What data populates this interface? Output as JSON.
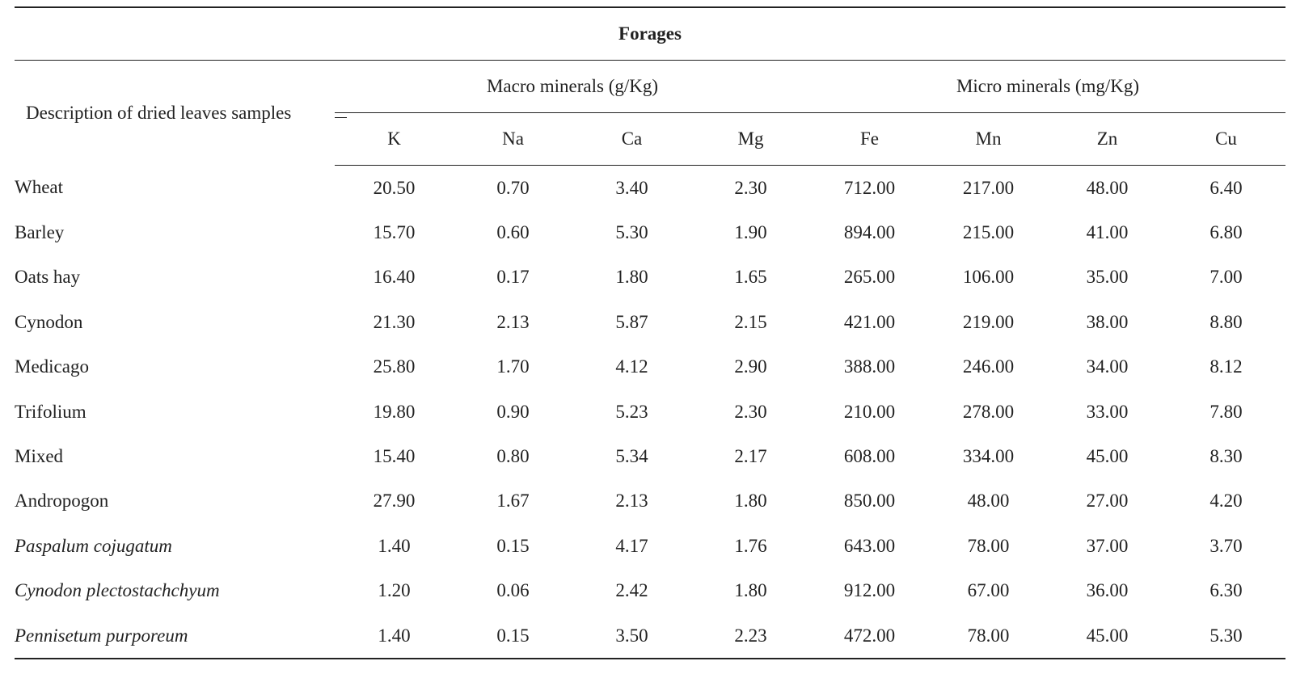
{
  "table": {
    "title": "Forages",
    "desc_header": "Description of dried leaves samples",
    "groups": [
      {
        "label": "Macro minerals (g/Kg)",
        "span": 4
      },
      {
        "label": "Micro minerals (mg/Kg)",
        "span": 4
      }
    ],
    "columns": [
      "K",
      "Na",
      "Ca",
      "Mg",
      "Fe",
      "Mn",
      "Zn",
      "Cu"
    ],
    "rows": [
      {
        "name": "Wheat",
        "italic": false,
        "values": [
          "20.50",
          "0.70",
          "3.40",
          "2.30",
          "712.00",
          "217.00",
          "48.00",
          "6.40"
        ]
      },
      {
        "name": "Barley",
        "italic": false,
        "values": [
          "15.70",
          "0.60",
          "5.30",
          "1.90",
          "894.00",
          "215.00",
          "41.00",
          "6.80"
        ]
      },
      {
        "name": "Oats hay",
        "italic": false,
        "values": [
          "16.40",
          "0.17",
          "1.80",
          "1.65",
          "265.00",
          "106.00",
          "35.00",
          "7.00"
        ]
      },
      {
        "name": "Cynodon",
        "italic": false,
        "values": [
          "21.30",
          "2.13",
          "5.87",
          "2.15",
          "421.00",
          "219.00",
          "38.00",
          "8.80"
        ]
      },
      {
        "name": "Medicago",
        "italic": false,
        "values": [
          "25.80",
          "1.70",
          "4.12",
          "2.90",
          "388.00",
          "246.00",
          "34.00",
          "8.12"
        ]
      },
      {
        "name": "Trifolium",
        "italic": false,
        "values": [
          "19.80",
          "0.90",
          "5.23",
          "2.30",
          "210.00",
          "278.00",
          "33.00",
          "7.80"
        ]
      },
      {
        "name": "Mixed",
        "italic": false,
        "values": [
          "15.40",
          "0.80",
          "5.34",
          "2.17",
          "608.00",
          "334.00",
          "45.00",
          "8.30"
        ]
      },
      {
        "name": "Andropogon",
        "italic": false,
        "values": [
          "27.90",
          "1.67",
          "2.13",
          "1.80",
          "850.00",
          "48.00",
          "27.00",
          "4.20"
        ]
      },
      {
        "name": "Paspalum cojugatum",
        "italic": true,
        "values": [
          "1.40",
          "0.15",
          "4.17",
          "1.76",
          "643.00",
          "78.00",
          "37.00",
          "3.70"
        ]
      },
      {
        "name": "Cynodon plectostachchyum",
        "italic": true,
        "values": [
          "1.20",
          "0.06",
          "2.42",
          "1.80",
          "912.00",
          "67.00",
          "36.00",
          "6.30"
        ]
      },
      {
        "name": "Pennisetum purporeum",
        "italic": true,
        "values": [
          "1.40",
          "0.15",
          "3.50",
          "2.23",
          "472.00",
          "78.00",
          "45.00",
          "5.30"
        ]
      }
    ]
  }
}
